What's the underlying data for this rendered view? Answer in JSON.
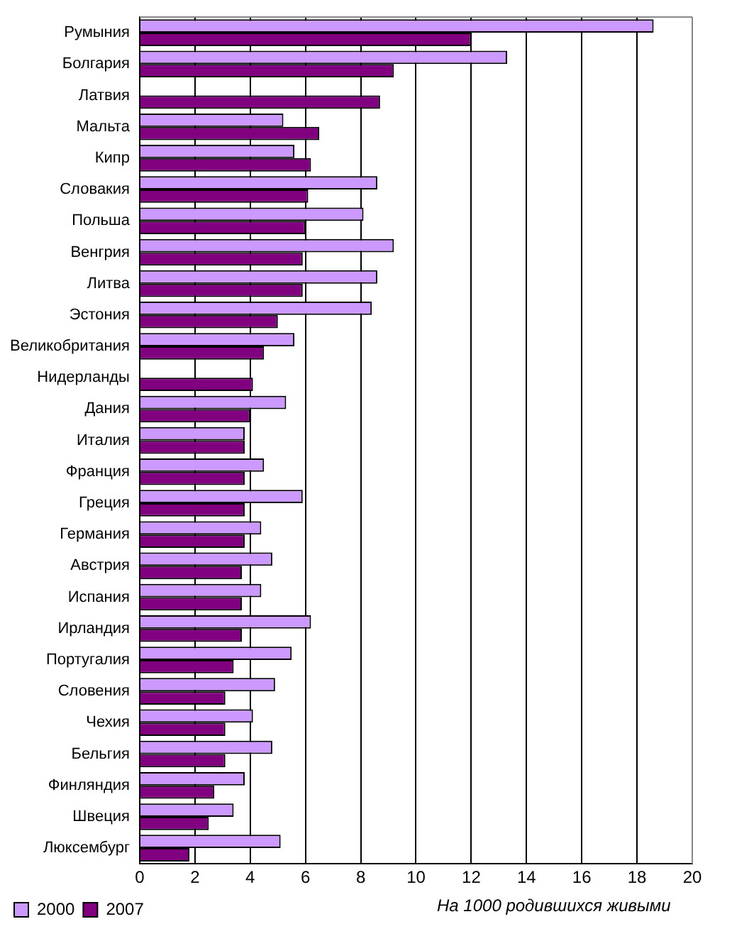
{
  "chart_data": {
    "type": "bar",
    "orientation": "horizontal",
    "xlabel": "На 1000 родившихся живыми",
    "categories": [
      "Румыния",
      "Болгария",
      "Латвия",
      "Мальта",
      "Кипр",
      "Словакия",
      "Польша",
      "Венгрия",
      "Литва",
      "Эстония",
      "Великобритания",
      "Нидерланды",
      "Дания",
      "Италия",
      "Франция",
      "Греция",
      "Германия",
      "Австрия",
      "Испания",
      "Ирландия",
      "Португалия",
      "Словения",
      "Чехия",
      "Бельгия",
      "Финляндия",
      "Швеция",
      "Люксембург"
    ],
    "series": [
      {
        "name": "2000",
        "color": "#cc99ff",
        "values": [
          18.6,
          13.3,
          null,
          5.2,
          5.6,
          8.6,
          8.1,
          9.2,
          8.6,
          8.4,
          5.6,
          null,
          5.3,
          3.8,
          4.5,
          5.9,
          4.4,
          4.8,
          4.4,
          6.2,
          5.5,
          4.9,
          4.1,
          4.8,
          3.8,
          3.4,
          5.1
        ]
      },
      {
        "name": "2007",
        "color": "#800080",
        "values": [
          12.0,
          9.2,
          8.7,
          6.5,
          6.2,
          6.1,
          6.0,
          5.9,
          5.9,
          5.0,
          4.5,
          4.1,
          4.0,
          3.8,
          3.8,
          3.8,
          3.8,
          3.7,
          3.7,
          3.7,
          3.4,
          3.1,
          3.1,
          3.1,
          2.7,
          2.5,
          1.8
        ]
      }
    ],
    "xlim": [
      0,
      20
    ],
    "xticks": [
      0,
      2,
      4,
      6,
      8,
      10,
      12,
      14,
      16,
      18,
      20
    ],
    "grid": "x",
    "legend": "bottom"
  }
}
